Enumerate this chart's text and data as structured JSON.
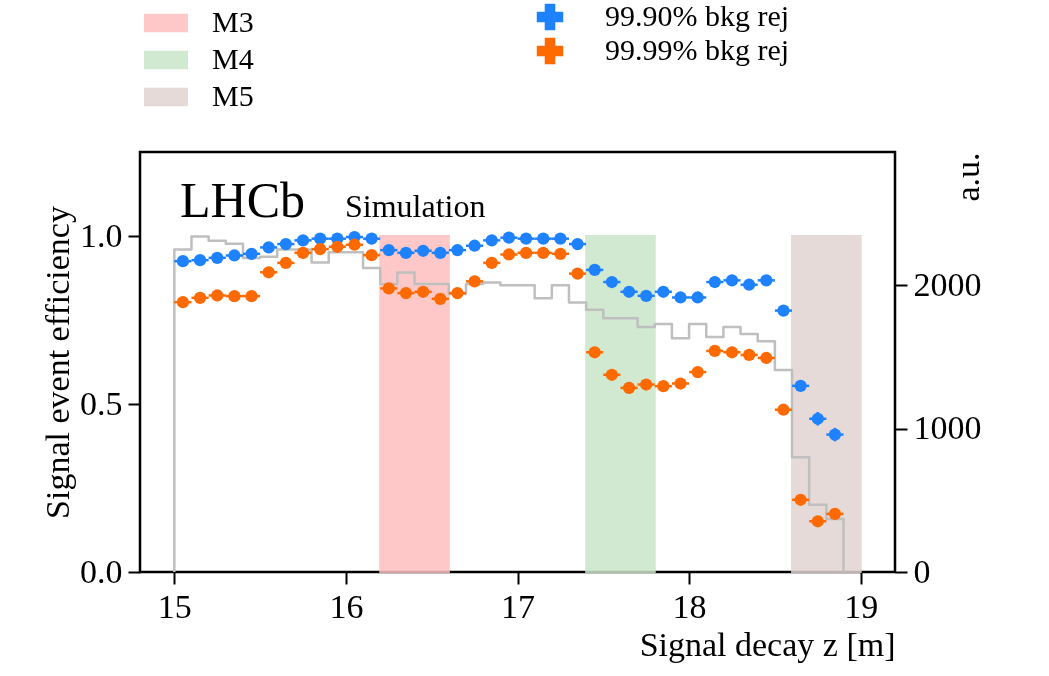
{
  "chart_data": {
    "type": "scatter",
    "xlabel": "Signal decay z [m]",
    "ylabel": "Signal event efficiency",
    "y2label": "a.u.",
    "annotations": [
      "LHCb",
      "Simulation"
    ],
    "xlim": [
      14.8,
      19.2
    ],
    "xticks": [
      15,
      16,
      17,
      18,
      19
    ],
    "ylim": [
      0,
      1.25
    ],
    "yticks": [
      {
        "value": 0,
        "label": "0.0"
      },
      0.5,
      {
        "value": 1,
        "label": "1.0"
      }
    ],
    "y2lim": [
      0,
      2930
    ],
    "y2ticks": [
      0,
      1000,
      2000
    ],
    "marker": "circle",
    "legend": "top",
    "grid": false,
    "bands": [
      {
        "axis": "x",
        "from": 16.2,
        "to": 16.6,
        "label": "M3",
        "color": "#ffbfbf"
      },
      {
        "axis": "x",
        "from": 17.4,
        "to": 17.8,
        "label": "M4",
        "color": "#c9e6c9"
      },
      {
        "axis": "x",
        "from": 18.6,
        "to": 19.0,
        "label": "M5",
        "color": "#e2d4d2"
      }
    ],
    "series": [
      {
        "type": "step",
        "axis": "y2",
        "color": "#bfbfbf",
        "marker": "none",
        "line_style": "solid",
        "x": [
          15.0,
          15.0,
          15.1,
          15.2,
          15.3,
          15.4,
          15.5,
          15.6,
          15.7,
          15.8,
          15.9,
          16.0,
          16.1,
          16.2,
          16.3,
          16.4,
          16.5,
          16.6,
          16.7,
          16.8,
          16.9,
          17.0,
          17.1,
          17.2,
          17.3,
          17.4,
          17.5,
          17.6,
          17.7,
          17.8,
          17.9,
          18.0,
          18.1,
          18.2,
          18.3,
          18.4,
          18.5,
          18.6,
          18.7,
          18.8,
          18.9
        ],
        "values": [
          0,
          2250,
          2340,
          2310,
          2290,
          2190,
          2200,
          2250,
          2250,
          2160,
          2230,
          2230,
          2120,
          2010,
          2090,
          2010,
          2010,
          1940,
          2010,
          2020,
          2000,
          2000,
          1910,
          2000,
          1880,
          1830,
          1770,
          1770,
          1710,
          1730,
          1630,
          1730,
          1640,
          1710,
          1660,
          1610,
          1410,
          800,
          470,
          370,
          0
        ]
      },
      {
        "name": "99.90% bkg rej",
        "color": "#1e82ff",
        "x": [
          15.05,
          15.15,
          15.25,
          15.35,
          15.45,
          15.55,
          15.65,
          15.75,
          15.85,
          15.95,
          16.05,
          16.15,
          16.25,
          16.35,
          16.45,
          16.55,
          16.65,
          16.75,
          16.85,
          16.95,
          17.05,
          17.15,
          17.25,
          17.35,
          17.45,
          17.55,
          17.65,
          17.75,
          17.85,
          17.95,
          18.05,
          18.15,
          18.25,
          18.35,
          18.45,
          18.55,
          18.65,
          18.75,
          18.85
        ],
        "values": [
          0.925,
          0.928,
          0.935,
          0.942,
          0.947,
          0.966,
          0.976,
          0.987,
          0.992,
          0.992,
          0.997,
          0.992,
          0.958,
          0.95,
          0.956,
          0.95,
          0.958,
          0.971,
          0.987,
          0.995,
          0.992,
          0.992,
          0.992,
          0.976,
          0.899,
          0.863,
          0.834,
          0.822,
          0.834,
          0.817,
          0.817,
          0.863,
          0.868,
          0.855,
          0.868,
          0.778,
          0.554,
          0.456,
          0.409
        ],
        "errors": [
          0.005,
          0.005,
          0.005,
          0.005,
          0.005,
          0.005,
          0.005,
          0.005,
          0.005,
          0.005,
          0.005,
          0.005,
          0.005,
          0.005,
          0.005,
          0.005,
          0.005,
          0.005,
          0.005,
          0.005,
          0.005,
          0.005,
          0.005,
          0.005,
          0.005,
          0.005,
          0.005,
          0.005,
          0.005,
          0.005,
          0.005,
          0.005,
          0.005,
          0.005,
          0.005,
          0.01,
          0.015,
          0.02,
          0.02
        ],
        "xerrors": [
          0.05,
          0.05,
          0.05,
          0.05,
          0.05,
          0.05,
          0.05,
          0.05,
          0.05,
          0.05,
          0.05,
          0.05,
          0.05,
          0.05,
          0.05,
          0.05,
          0.05,
          0.05,
          0.05,
          0.05,
          0.05,
          0.05,
          0.05,
          0.05,
          0.05,
          0.05,
          0.05,
          0.05,
          0.05,
          0.05,
          0.05,
          0.05,
          0.05,
          0.05,
          0.05,
          0.05,
          0.05,
          0.05,
          0.05
        ]
      },
      {
        "name": "99.99% bkg rej",
        "color": "#ff6a00",
        "x": [
          15.05,
          15.15,
          15.25,
          15.35,
          15.45,
          15.55,
          15.65,
          15.75,
          15.85,
          15.95,
          16.05,
          16.15,
          16.25,
          16.35,
          16.45,
          16.55,
          16.65,
          16.75,
          16.85,
          16.95,
          17.05,
          17.15,
          17.25,
          17.35,
          17.45,
          17.55,
          17.65,
          17.75,
          17.85,
          17.95,
          18.05,
          18.15,
          18.25,
          18.35,
          18.45,
          18.55,
          18.65,
          18.75,
          18.85
        ],
        "values": [
          0.803,
          0.816,
          0.823,
          0.821,
          0.821,
          0.892,
          0.92,
          0.95,
          0.961,
          0.968,
          0.974,
          0.943,
          0.844,
          0.83,
          0.834,
          0.813,
          0.83,
          0.865,
          0.92,
          0.945,
          0.95,
          0.95,
          0.947,
          0.888,
          0.654,
          0.587,
          0.548,
          0.558,
          0.553,
          0.561,
          0.595,
          0.658,
          0.654,
          0.646,
          0.637,
          0.483,
          0.215,
          0.151,
          0.173
        ],
        "errors": [
          0.005,
          0.005,
          0.005,
          0.005,
          0.005,
          0.005,
          0.005,
          0.005,
          0.005,
          0.005,
          0.005,
          0.005,
          0.005,
          0.005,
          0.005,
          0.005,
          0.005,
          0.005,
          0.005,
          0.005,
          0.005,
          0.005,
          0.005,
          0.005,
          0.005,
          0.005,
          0.005,
          0.005,
          0.005,
          0.005,
          0.005,
          0.005,
          0.005,
          0.005,
          0.005,
          0.01,
          0.01,
          0.01,
          0.01
        ],
        "xerrors": [
          0.05,
          0.05,
          0.05,
          0.05,
          0.05,
          0.05,
          0.05,
          0.05,
          0.05,
          0.05,
          0.05,
          0.05,
          0.05,
          0.05,
          0.05,
          0.05,
          0.05,
          0.05,
          0.05,
          0.05,
          0.05,
          0.05,
          0.05,
          0.05,
          0.05,
          0.05,
          0.05,
          0.05,
          0.05,
          0.05,
          0.05,
          0.05,
          0.05,
          0.05,
          0.05,
          0.05,
          0.05,
          0.05,
          0.05
        ]
      }
    ]
  }
}
